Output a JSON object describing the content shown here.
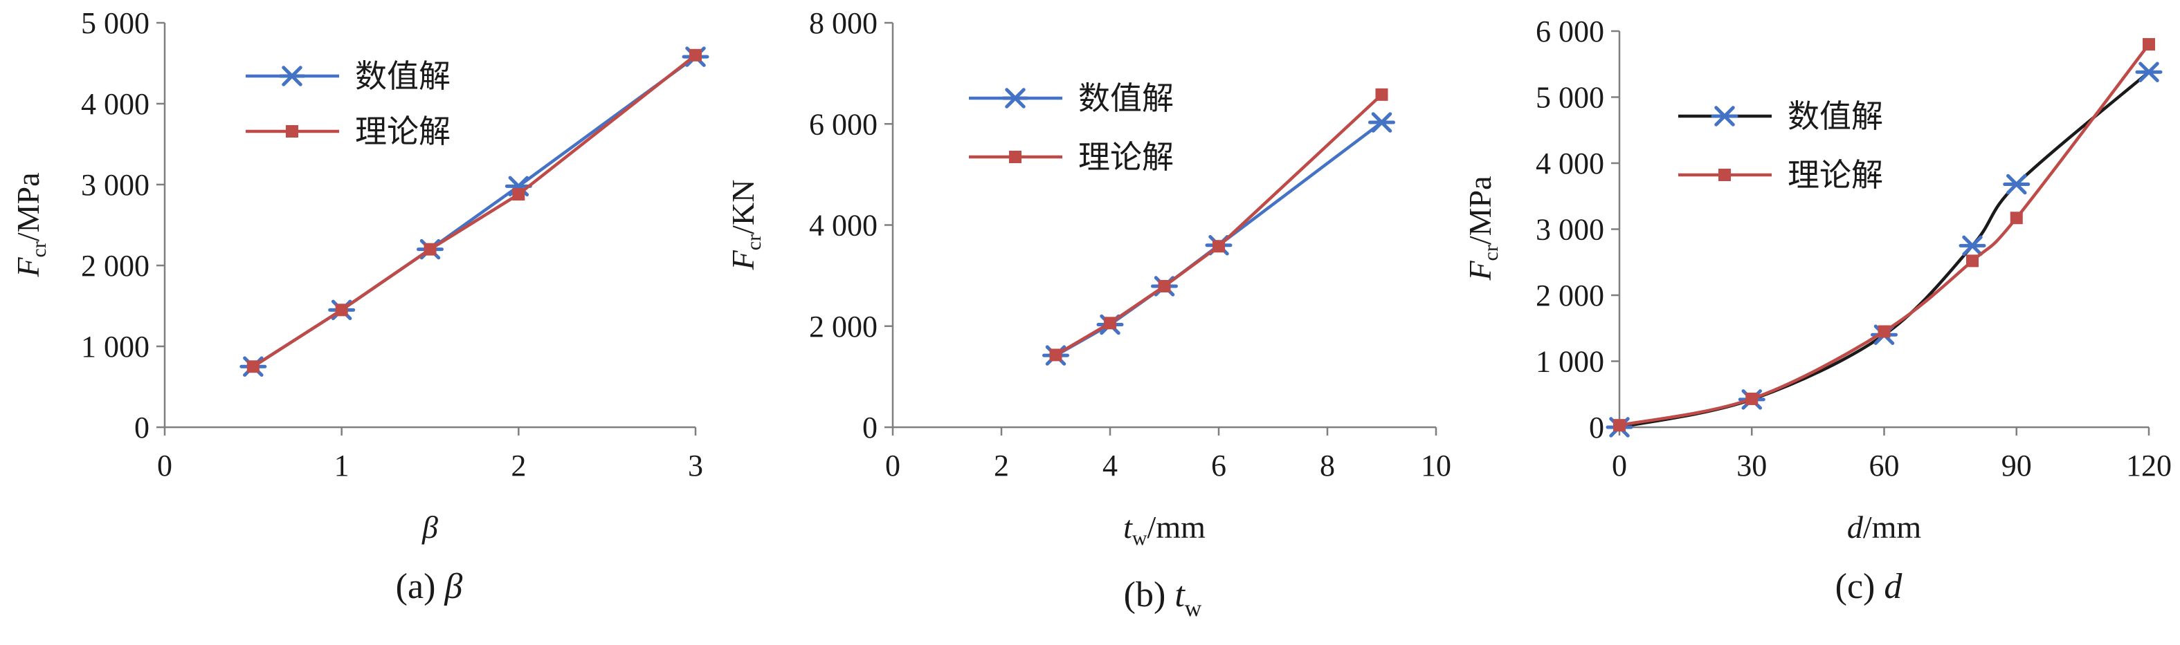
{
  "colors": {
    "numeric_blue": "#4472C4",
    "theory_red": "#BE4B48",
    "numeric_black": "#1a1a1a",
    "axis": "#7f7f7f"
  },
  "chart_data": [
    {
      "type": "line",
      "caption_prefix": "(a)",
      "caption_symbol": "β",
      "caption_sub": "",
      "xlabel_symbol": "β",
      "xlabel_sub": "",
      "xlabel_unit": "",
      "ylabel_symbol": "F",
      "ylabel_sub": "cr",
      "ylabel_unit": "/MPa",
      "xlim": [
        0,
        3
      ],
      "ylim": [
        0,
        5000
      ],
      "xticks": [
        0,
        1,
        2,
        3
      ],
      "yticks": [
        0,
        1000,
        2000,
        3000,
        4000,
        5000
      ],
      "xtick_labels": [
        "0",
        "1",
        "2",
        "3"
      ],
      "ytick_labels": [
        "0",
        "1 000",
        "2 000",
        "3 000",
        "4 000",
        "5 000"
      ],
      "legend_position": "top-left",
      "grid": false,
      "series": [
        {
          "name": "数值解",
          "marker": "star",
          "color_key": "numeric_blue",
          "smooth": false,
          "x": [
            0.5,
            1,
            1.5,
            2,
            3
          ],
          "y": [
            750,
            1450,
            2200,
            2980,
            4580
          ]
        },
        {
          "name": "理论解",
          "marker": "square",
          "color_key": "theory_red",
          "smooth": false,
          "x": [
            0.5,
            1,
            1.5,
            2,
            3
          ],
          "y": [
            750,
            1450,
            2200,
            2880,
            4600
          ]
        }
      ]
    },
    {
      "type": "line",
      "caption_prefix": "(b)",
      "caption_symbol": "t",
      "caption_sub": "w",
      "xlabel_symbol": "t",
      "xlabel_sub": "w",
      "xlabel_unit": "/mm",
      "ylabel_symbol": "F",
      "ylabel_sub": "cr",
      "ylabel_unit": "/KN",
      "xlim": [
        0,
        10
      ],
      "ylim": [
        0,
        8000
      ],
      "xticks": [
        0,
        2,
        4,
        6,
        8,
        10
      ],
      "yticks": [
        0,
        2000,
        4000,
        6000,
        8000
      ],
      "xtick_labels": [
        "0",
        "2",
        "4",
        "6",
        "8",
        "10"
      ],
      "ytick_labels": [
        "0",
        "2 000",
        "4 000",
        "6 000",
        "8 000"
      ],
      "legend_position": "top-left",
      "grid": false,
      "series": [
        {
          "name": "数值解",
          "marker": "star",
          "color_key": "numeric_blue",
          "smooth": false,
          "x": [
            3,
            4,
            5,
            6,
            9
          ],
          "y": [
            1420,
            2030,
            2790,
            3600,
            6030
          ]
        },
        {
          "name": "理论解",
          "marker": "square",
          "color_key": "theory_red",
          "smooth": false,
          "x": [
            3,
            4,
            5,
            6,
            9
          ],
          "y": [
            1430,
            2060,
            2790,
            3580,
            6580
          ]
        }
      ]
    },
    {
      "type": "line",
      "caption_prefix": "(c)",
      "caption_symbol": "d",
      "caption_sub": "",
      "xlabel_symbol": "d",
      "xlabel_sub": "",
      "xlabel_unit": "/mm",
      "ylabel_symbol": "F",
      "ylabel_sub": "cr",
      "ylabel_unit": "/MPa",
      "xlim": [
        0,
        120
      ],
      "ylim": [
        0,
        6000
      ],
      "xticks": [
        0,
        30,
        60,
        90,
        120
      ],
      "yticks": [
        0,
        1000,
        2000,
        3000,
        4000,
        5000,
        6000
      ],
      "xtick_labels": [
        "0",
        "30",
        "60",
        "90",
        "120"
      ],
      "ytick_labels": [
        "0",
        "1 000",
        "2 000",
        "3 000",
        "4 000",
        "5 000",
        "6 000"
      ],
      "legend_position": "top-left",
      "grid": false,
      "series": [
        {
          "name": "数值解",
          "marker": "star",
          "color_key": "numeric_black",
          "marker_color_key": "numeric_blue",
          "smooth": true,
          "x": [
            0,
            30,
            60,
            80,
            90,
            120
          ],
          "y": [
            0,
            420,
            1400,
            2750,
            3680,
            5380
          ]
        },
        {
          "name": "理论解",
          "marker": "square",
          "color_key": "theory_red",
          "smooth": true,
          "x": [
            0,
            30,
            60,
            80,
            90,
            120
          ],
          "y": [
            30,
            430,
            1450,
            2520,
            3170,
            5800
          ]
        }
      ]
    }
  ]
}
